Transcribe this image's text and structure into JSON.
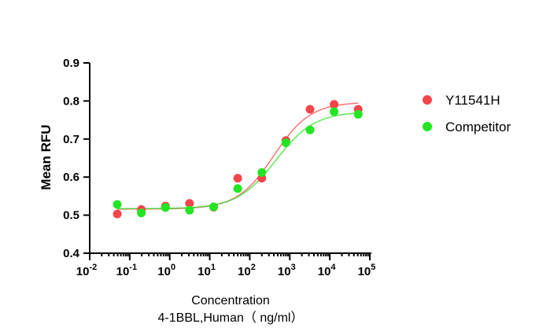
{
  "chart_data": {
    "type": "scatter",
    "title": "",
    "xlabel": "Concentration",
    "xlabel_line2": "4-1BBL,Human（ ng/ml）",
    "ylabel": "Mean RFU",
    "x_scale": "log",
    "xlim": [
      0.01,
      100000
    ],
    "ylim": [
      0.4,
      0.9
    ],
    "x_ticks": [
      {
        "base": "10",
        "exp": "-2",
        "value": 0.01
      },
      {
        "base": "10",
        "exp": "-1",
        "value": 0.1
      },
      {
        "base": "10",
        "exp": "0",
        "value": 1
      },
      {
        "base": "10",
        "exp": "1",
        "value": 10
      },
      {
        "base": "10",
        "exp": "2",
        "value": 100
      },
      {
        "base": "10",
        "exp": "3",
        "value": 1000
      },
      {
        "base": "10",
        "exp": "4",
        "value": 10000
      },
      {
        "base": "10",
        "exp": "5",
        "value": 100000
      }
    ],
    "y_ticks": [
      "0.4",
      "0.5",
      "0.6",
      "0.7",
      "0.8",
      "0.9"
    ],
    "legend_position": "right",
    "series": [
      {
        "name": "Y11541H",
        "color": "#f5454a",
        "x": [
          0.0488,
          0.195,
          0.781,
          3.125,
          12.5,
          50,
          200,
          800,
          3200,
          12800,
          51200
        ],
        "y": [
          0.503,
          0.515,
          0.524,
          0.531,
          0.521,
          0.597,
          0.597,
          0.696,
          0.778,
          0.791,
          0.778
        ],
        "fit": {
          "bottom": 0.516,
          "top": 0.797,
          "ec50": 400,
          "hill": 0.95
        }
      },
      {
        "name": "Competitor",
        "color": "#22e622",
        "x": [
          0.0488,
          0.195,
          0.781,
          3.125,
          12.5,
          50,
          200,
          800,
          3200,
          12800,
          51200
        ],
        "y": [
          0.528,
          0.506,
          0.52,
          0.513,
          0.522,
          0.57,
          0.612,
          0.69,
          0.724,
          0.772,
          0.765
        ],
        "fit": {
          "bottom": 0.517,
          "top": 0.772,
          "ec50": 450,
          "hill": 0.9
        }
      }
    ]
  }
}
